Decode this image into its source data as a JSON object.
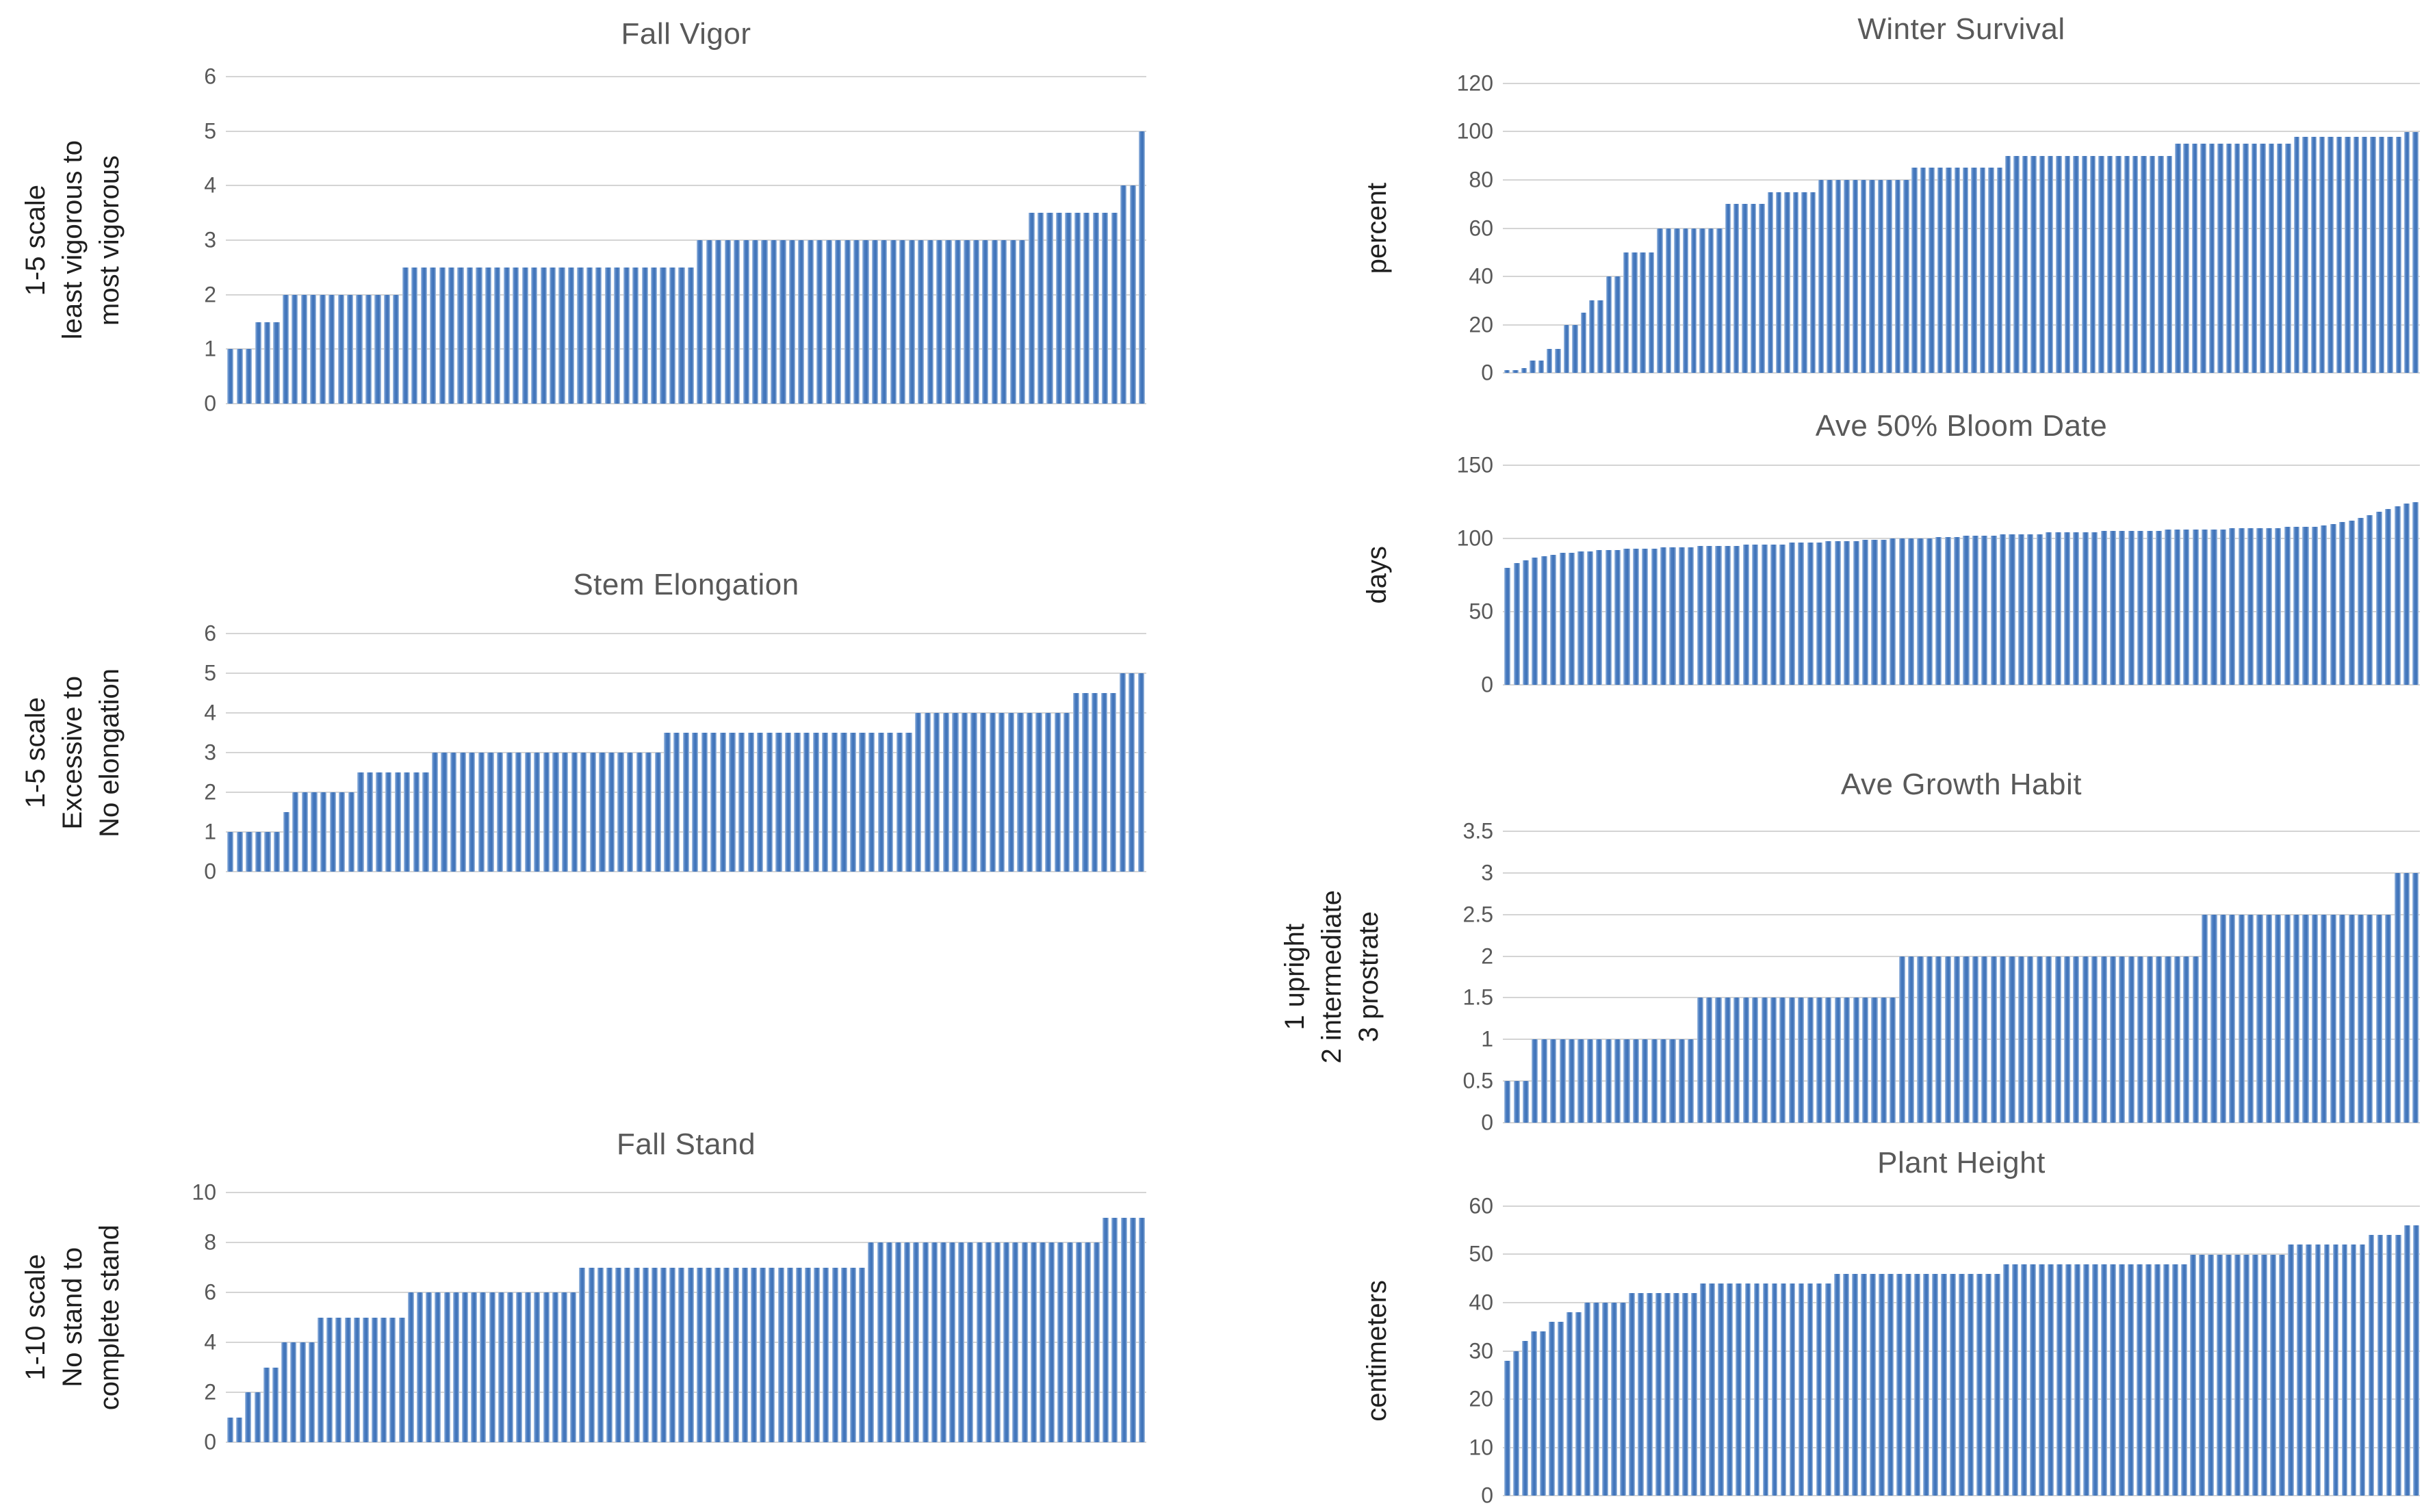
{
  "colors": {
    "bar_core": "#3e71b6",
    "bar_edge": "#aac4e4",
    "gridline": "#d4d4d4",
    "title_text": "#595959",
    "tick_text": "#595959",
    "axis_label_text": "#1f1f1f",
    "background": "#ffffff"
  },
  "chart_data": [
    {
      "type": "bar",
      "title": "Fall Vigor",
      "ylabel_lines": [
        "1-5 scale",
        "least vigorous to",
        "most vigorous"
      ],
      "xlabel": "",
      "ylim": [
        0,
        6
      ],
      "yticks": [
        0,
        1,
        2,
        3,
        4,
        5,
        6
      ],
      "grid": true,
      "legend": "none",
      "panel": "left",
      "values": [
        1,
        1,
        1,
        1.5,
        1.5,
        1.5,
        2,
        2,
        2,
        2,
        2,
        2,
        2,
        2,
        2,
        2,
        2,
        2,
        2,
        2.5,
        2.5,
        2.5,
        2.5,
        2.5,
        2.5,
        2.5,
        2.5,
        2.5,
        2.5,
        2.5,
        2.5,
        2.5,
        2.5,
        2.5,
        2.5,
        2.5,
        2.5,
        2.5,
        2.5,
        2.5,
        2.5,
        2.5,
        2.5,
        2.5,
        2.5,
        2.5,
        2.5,
        2.5,
        2.5,
        2.5,
        2.5,
        3,
        3,
        3,
        3,
        3,
        3,
        3,
        3,
        3,
        3,
        3,
        3,
        3,
        3,
        3,
        3,
        3,
        3,
        3,
        3,
        3,
        3,
        3,
        3,
        3,
        3,
        3,
        3,
        3,
        3,
        3,
        3,
        3,
        3,
        3,
        3,
        3.5,
        3.5,
        3.5,
        3.5,
        3.5,
        3.5,
        3.5,
        3.5,
        3.5,
        3.5,
        4,
        4,
        5
      ]
    },
    {
      "type": "bar",
      "title": "Stem Elongation",
      "ylabel_lines": [
        "1-5 scale",
        "Excessive to",
        "No elongation"
      ],
      "xlabel": "",
      "ylim": [
        0,
        6
      ],
      "yticks": [
        0,
        1,
        2,
        3,
        4,
        5,
        6
      ],
      "grid": true,
      "legend": "none",
      "panel": "left",
      "values": [
        1,
        1,
        1,
        1,
        1,
        1,
        1.5,
        2,
        2,
        2,
        2,
        2,
        2,
        2,
        2.5,
        2.5,
        2.5,
        2.5,
        2.5,
        2.5,
        2.5,
        2.5,
        3,
        3,
        3,
        3,
        3,
        3,
        3,
        3,
        3,
        3,
        3,
        3,
        3,
        3,
        3,
        3,
        3,
        3,
        3,
        3,
        3,
        3,
        3,
        3,
        3,
        3.5,
        3.5,
        3.5,
        3.5,
        3.5,
        3.5,
        3.5,
        3.5,
        3.5,
        3.5,
        3.5,
        3.5,
        3.5,
        3.5,
        3.5,
        3.5,
        3.5,
        3.5,
        3.5,
        3.5,
        3.5,
        3.5,
        3.5,
        3.5,
        3.5,
        3.5,
        3.5,
        4,
        4,
        4,
        4,
        4,
        4,
        4,
        4,
        4,
        4,
        4,
        4,
        4,
        4,
        4,
        4,
        4,
        4.5,
        4.5,
        4.5,
        4.5,
        4.5,
        5,
        5,
        5
      ]
    },
    {
      "type": "bar",
      "title": "Fall Stand",
      "ylabel_lines": [
        "1-10 scale",
        "No stand to",
        "complete stand"
      ],
      "xlabel": "",
      "ylim": [
        0,
        10
      ],
      "yticks": [
        0,
        2,
        4,
        6,
        8,
        10
      ],
      "grid": true,
      "legend": "none",
      "panel": "left",
      "values": [
        1,
        1,
        2,
        2,
        3,
        3,
        4,
        4,
        4,
        4,
        5,
        5,
        5,
        5,
        5,
        5,
        5,
        5,
        5,
        5,
        6,
        6,
        6,
        6,
        6,
        6,
        6,
        6,
        6,
        6,
        6,
        6,
        6,
        6,
        6,
        6,
        6,
        6,
        6,
        7,
        7,
        7,
        7,
        7,
        7,
        7,
        7,
        7,
        7,
        7,
        7,
        7,
        7,
        7,
        7,
        7,
        7,
        7,
        7,
        7,
        7,
        7,
        7,
        7,
        7,
        7,
        7,
        7,
        7,
        7,
        7,
        8,
        8,
        8,
        8,
        8,
        8,
        8,
        8,
        8,
        8,
        8,
        8,
        8,
        8,
        8,
        8,
        8,
        8,
        8,
        8,
        8,
        8,
        8,
        8,
        8,
        8,
        9,
        9,
        9,
        9,
        9
      ]
    },
    {
      "type": "bar",
      "title": "Winter Survival",
      "ylabel_lines": [
        "percent"
      ],
      "xlabel": "",
      "ylim": [
        0,
        120
      ],
      "yticks": [
        0,
        20,
        40,
        60,
        80,
        100,
        120
      ],
      "grid": true,
      "legend": "none",
      "panel": "right",
      "values": [
        1,
        1,
        2,
        5,
        5,
        10,
        10,
        20,
        20,
        25,
        30,
        30,
        40,
        40,
        50,
        50,
        50,
        50,
        60,
        60,
        60,
        60,
        60,
        60,
        60,
        60,
        70,
        70,
        70,
        70,
        70,
        75,
        75,
        75,
        75,
        75,
        75,
        80,
        80,
        80,
        80,
        80,
        80,
        80,
        80,
        80,
        80,
        80,
        85,
        85,
        85,
        85,
        85,
        85,
        85,
        85,
        85,
        85,
        85,
        90,
        90,
        90,
        90,
        90,
        90,
        90,
        90,
        90,
        90,
        90,
        90,
        90,
        90,
        90,
        90,
        90,
        90,
        90,
        90,
        95,
        95,
        95,
        95,
        95,
        95,
        95,
        95,
        95,
        95,
        95,
        95,
        95,
        95,
        98,
        98,
        98,
        98,
        98,
        98,
        98,
        98,
        98,
        98,
        98,
        98,
        98,
        100,
        100
      ]
    },
    {
      "type": "bar",
      "title": "Ave 50% Bloom Date",
      "ylabel_lines": [
        "days"
      ],
      "xlabel": "",
      "ylim": [
        0,
        150
      ],
      "yticks": [
        0,
        50,
        100,
        150
      ],
      "grid": true,
      "legend": "none",
      "panel": "right",
      "values": [
        80,
        83,
        85,
        87,
        88,
        89,
        90,
        90,
        91,
        91,
        92,
        92,
        92,
        93,
        93,
        93,
        93,
        94,
        94,
        94,
        94,
        95,
        95,
        95,
        95,
        95,
        96,
        96,
        96,
        96,
        96,
        97,
        97,
        97,
        97,
        98,
        98,
        98,
        98,
        99,
        99,
        99,
        100,
        100,
        100,
        100,
        100,
        101,
        101,
        101,
        102,
        102,
        102,
        102,
        103,
        103,
        103,
        103,
        103,
        104,
        104,
        104,
        104,
        104,
        104,
        105,
        105,
        105,
        105,
        105,
        105,
        105,
        106,
        106,
        106,
        106,
        106,
        106,
        106,
        107,
        107,
        107,
        107,
        107,
        107,
        108,
        108,
        108,
        108,
        109,
        110,
        111,
        112,
        114,
        116,
        118,
        120,
        122,
        124,
        125
      ]
    },
    {
      "type": "bar",
      "title": "Ave Growth Habit",
      "ylabel_lines": [
        "1 upright",
        "2 intermediate",
        "3 prostrate"
      ],
      "xlabel": "",
      "ylim": [
        0,
        3.5
      ],
      "yticks": [
        0,
        0.5,
        1,
        1.5,
        2,
        2.5,
        3,
        3.5
      ],
      "grid": true,
      "legend": "none",
      "panel": "right",
      "values": [
        0.5,
        0.5,
        0.5,
        1,
        1,
        1,
        1,
        1,
        1,
        1,
        1,
        1,
        1,
        1,
        1,
        1,
        1,
        1,
        1,
        1,
        1,
        1.5,
        1.5,
        1.5,
        1.5,
        1.5,
        1.5,
        1.5,
        1.5,
        1.5,
        1.5,
        1.5,
        1.5,
        1.5,
        1.5,
        1.5,
        1.5,
        1.5,
        1.5,
        1.5,
        1.5,
        1.5,
        1.5,
        2,
        2,
        2,
        2,
        2,
        2,
        2,
        2,
        2,
        2,
        2,
        2,
        2,
        2,
        2,
        2,
        2,
        2,
        2,
        2,
        2,
        2,
        2,
        2,
        2,
        2,
        2,
        2,
        2,
        2,
        2,
        2,
        2,
        2.5,
        2.5,
        2.5,
        2.5,
        2.5,
        2.5,
        2.5,
        2.5,
        2.5,
        2.5,
        2.5,
        2.5,
        2.5,
        2.5,
        2.5,
        2.5,
        2.5,
        2.5,
        2.5,
        2.5,
        2.5,
        3,
        3,
        3
      ]
    },
    {
      "type": "bar",
      "title": "Plant Height",
      "ylabel_lines": [
        "centimeters"
      ],
      "xlabel": "",
      "ylim": [
        0,
        60
      ],
      "yticks": [
        0,
        10,
        20,
        30,
        40,
        50,
        60
      ],
      "grid": true,
      "legend": "none",
      "panel": "right",
      "values": [
        28,
        30,
        32,
        34,
        34,
        36,
        36,
        38,
        38,
        40,
        40,
        40,
        40,
        40,
        42,
        42,
        42,
        42,
        42,
        42,
        42,
        42,
        44,
        44,
        44,
        44,
        44,
        44,
        44,
        44,
        44,
        44,
        44,
        44,
        44,
        44,
        44,
        46,
        46,
        46,
        46,
        46,
        46,
        46,
        46,
        46,
        46,
        46,
        46,
        46,
        46,
        46,
        46,
        46,
        46,
        46,
        48,
        48,
        48,
        48,
        48,
        48,
        48,
        48,
        48,
        48,
        48,
        48,
        48,
        48,
        48,
        48,
        48,
        48,
        48,
        48,
        48,
        50,
        50,
        50,
        50,
        50,
        50,
        50,
        50,
        50,
        50,
        50,
        52,
        52,
        52,
        52,
        52,
        52,
        52,
        52,
        52,
        54,
        54,
        54,
        54,
        56,
        56
      ]
    }
  ]
}
